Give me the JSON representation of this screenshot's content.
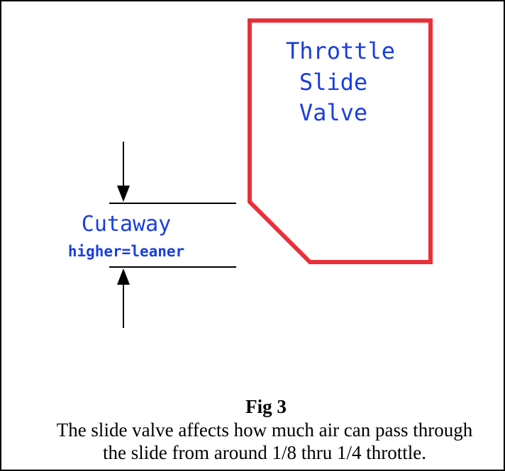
{
  "diagram": {
    "slide_label": [
      "Throttle",
      "Slide",
      "Valve"
    ],
    "cutaway_label": "Cutaway",
    "cutaway_note": "higher=leaner",
    "figure_title": "Fig 3",
    "caption": [
      "The slide valve affects how much air can pass through",
      "the slide from around 1/8 thru 1/4 throttle."
    ]
  }
}
